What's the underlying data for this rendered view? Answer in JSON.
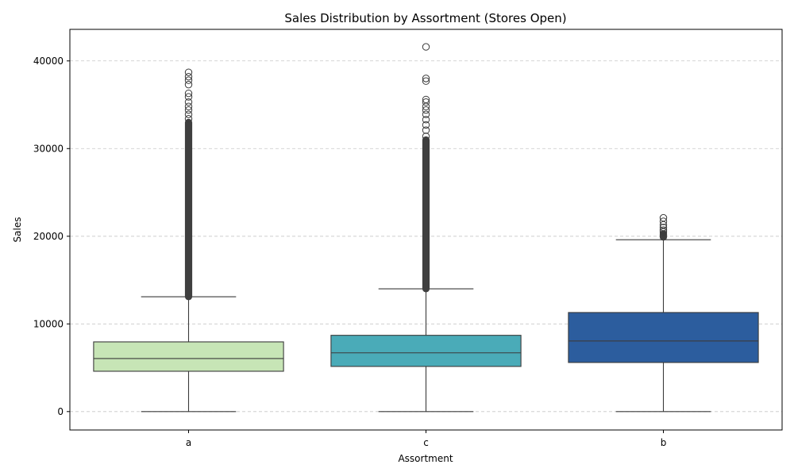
{
  "chart_data": {
    "type": "box",
    "title": "Sales Distribution by Assortment (Stores Open)",
    "xlabel": "Assortment",
    "ylabel": "Sales",
    "ylim": [
      -2100,
      43600
    ],
    "yticks": [
      0,
      10000,
      20000,
      30000,
      40000
    ],
    "grid": {
      "axis": "y",
      "style": "dashed"
    },
    "categories": [
      "a",
      "c",
      "b"
    ],
    "boxes": [
      {
        "category": "a",
        "color": "#c7e5b6",
        "whisker_low": 0,
        "q1": 4600,
        "median": 6050,
        "q3": 7950,
        "whisker_high": 13100,
        "outlier_band": [
          13100,
          33000
        ],
        "outliers": [
          33400,
          33900,
          34400,
          34800,
          35300,
          35900,
          36300,
          37300,
          37800,
          38200,
          38700
        ]
      },
      {
        "category": "c",
        "color": "#4aabb8",
        "whisker_low": 0,
        "q1": 5150,
        "median": 6700,
        "q3": 8700,
        "whisker_high": 14000,
        "outlier_band": [
          14000,
          31000
        ],
        "outliers": [
          31400,
          32100,
          32700,
          33300,
          33900,
          34400,
          34800,
          35300,
          35600,
          37700,
          38000,
          41600
        ]
      },
      {
        "category": "b",
        "color": "#2c5d9e",
        "whisker_low": 0,
        "q1": 5600,
        "median": 8050,
        "q3": 11300,
        "whisker_high": 19600,
        "outlier_band": [
          19900,
          20300
        ],
        "outliers": [
          20500,
          20700,
          21000,
          21300,
          21700,
          22100
        ]
      }
    ]
  }
}
